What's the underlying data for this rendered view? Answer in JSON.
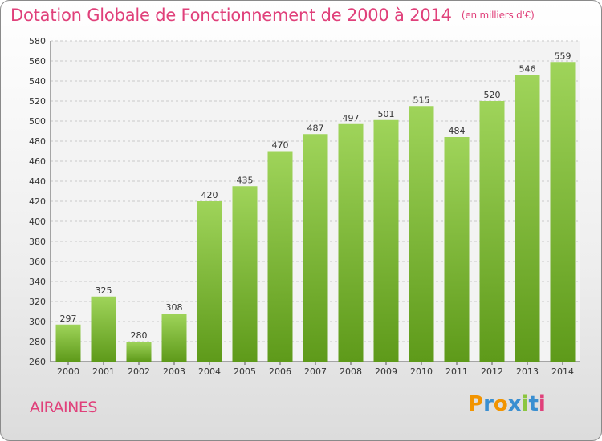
{
  "title": "Dotation Globale de Fonctionnement de 2000 à 2014",
  "unit": "(en milliers d'€)",
  "city": "AIRAINES",
  "logo": {
    "letters": [
      "P",
      "r",
      "o",
      "x",
      "i",
      "t",
      "i"
    ],
    "colors": [
      "#f29400",
      "#3a8fd1",
      "#f29400",
      "#3a8fd1",
      "#8cc63f",
      "#3a8fd1",
      "#e0407a"
    ]
  },
  "colors": {
    "accent": "#e0407a",
    "bar_top": "#9fd45a",
    "bar_bottom": "#5e9a1a"
  },
  "chart_data": {
    "type": "bar",
    "categories": [
      "2000",
      "2001",
      "2002",
      "2003",
      "2004",
      "2005",
      "2006",
      "2007",
      "2008",
      "2009",
      "2010",
      "2011",
      "2012",
      "2013",
      "2014"
    ],
    "values": [
      297,
      325,
      280,
      308,
      420,
      435,
      470,
      487,
      497,
      501,
      515,
      484,
      520,
      546,
      559
    ],
    "ylim": [
      260,
      580
    ],
    "yticks": [
      260,
      280,
      300,
      320,
      340,
      360,
      380,
      400,
      420,
      440,
      460,
      480,
      500,
      520,
      540,
      560,
      580
    ],
    "grid": true,
    "title": "Dotation Globale de Fonctionnement de 2000 à 2014",
    "xlabel": "",
    "ylabel": ""
  }
}
